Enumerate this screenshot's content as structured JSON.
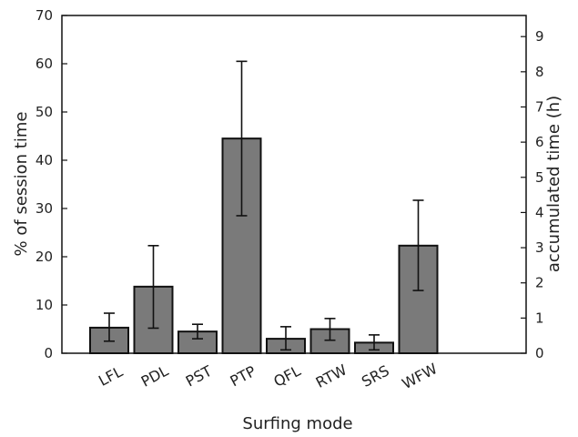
{
  "chart_data": {
    "type": "bar",
    "categories": [
      "LFL",
      "PDL",
      "PST",
      "PTP",
      "QFL",
      "RTW",
      "SRS",
      "WFW"
    ],
    "values": [
      5.3,
      13.8,
      4.5,
      44.5,
      3.0,
      5.0,
      2.2,
      22.3
    ],
    "error_low": [
      2.5,
      5.2,
      3.0,
      28.5,
      0.7,
      2.7,
      0.7,
      13.0
    ],
    "error_high": [
      8.3,
      22.3,
      6.0,
      60.5,
      5.5,
      7.2,
      3.8,
      31.7
    ],
    "xlabel": "Surfing mode",
    "ylabel": "% of session time",
    "ylim": [
      0,
      70
    ],
    "yticks": [
      0,
      10,
      20,
      30,
      40,
      50,
      60,
      70
    ],
    "y2label": "accumulated time (h)",
    "y2lim": [
      0,
      9.6
    ],
    "y2ticks": [
      0,
      1,
      2,
      3,
      4,
      5,
      6,
      7,
      8,
      9
    ],
    "grid": false,
    "bar_color": "#7a7a7a"
  }
}
